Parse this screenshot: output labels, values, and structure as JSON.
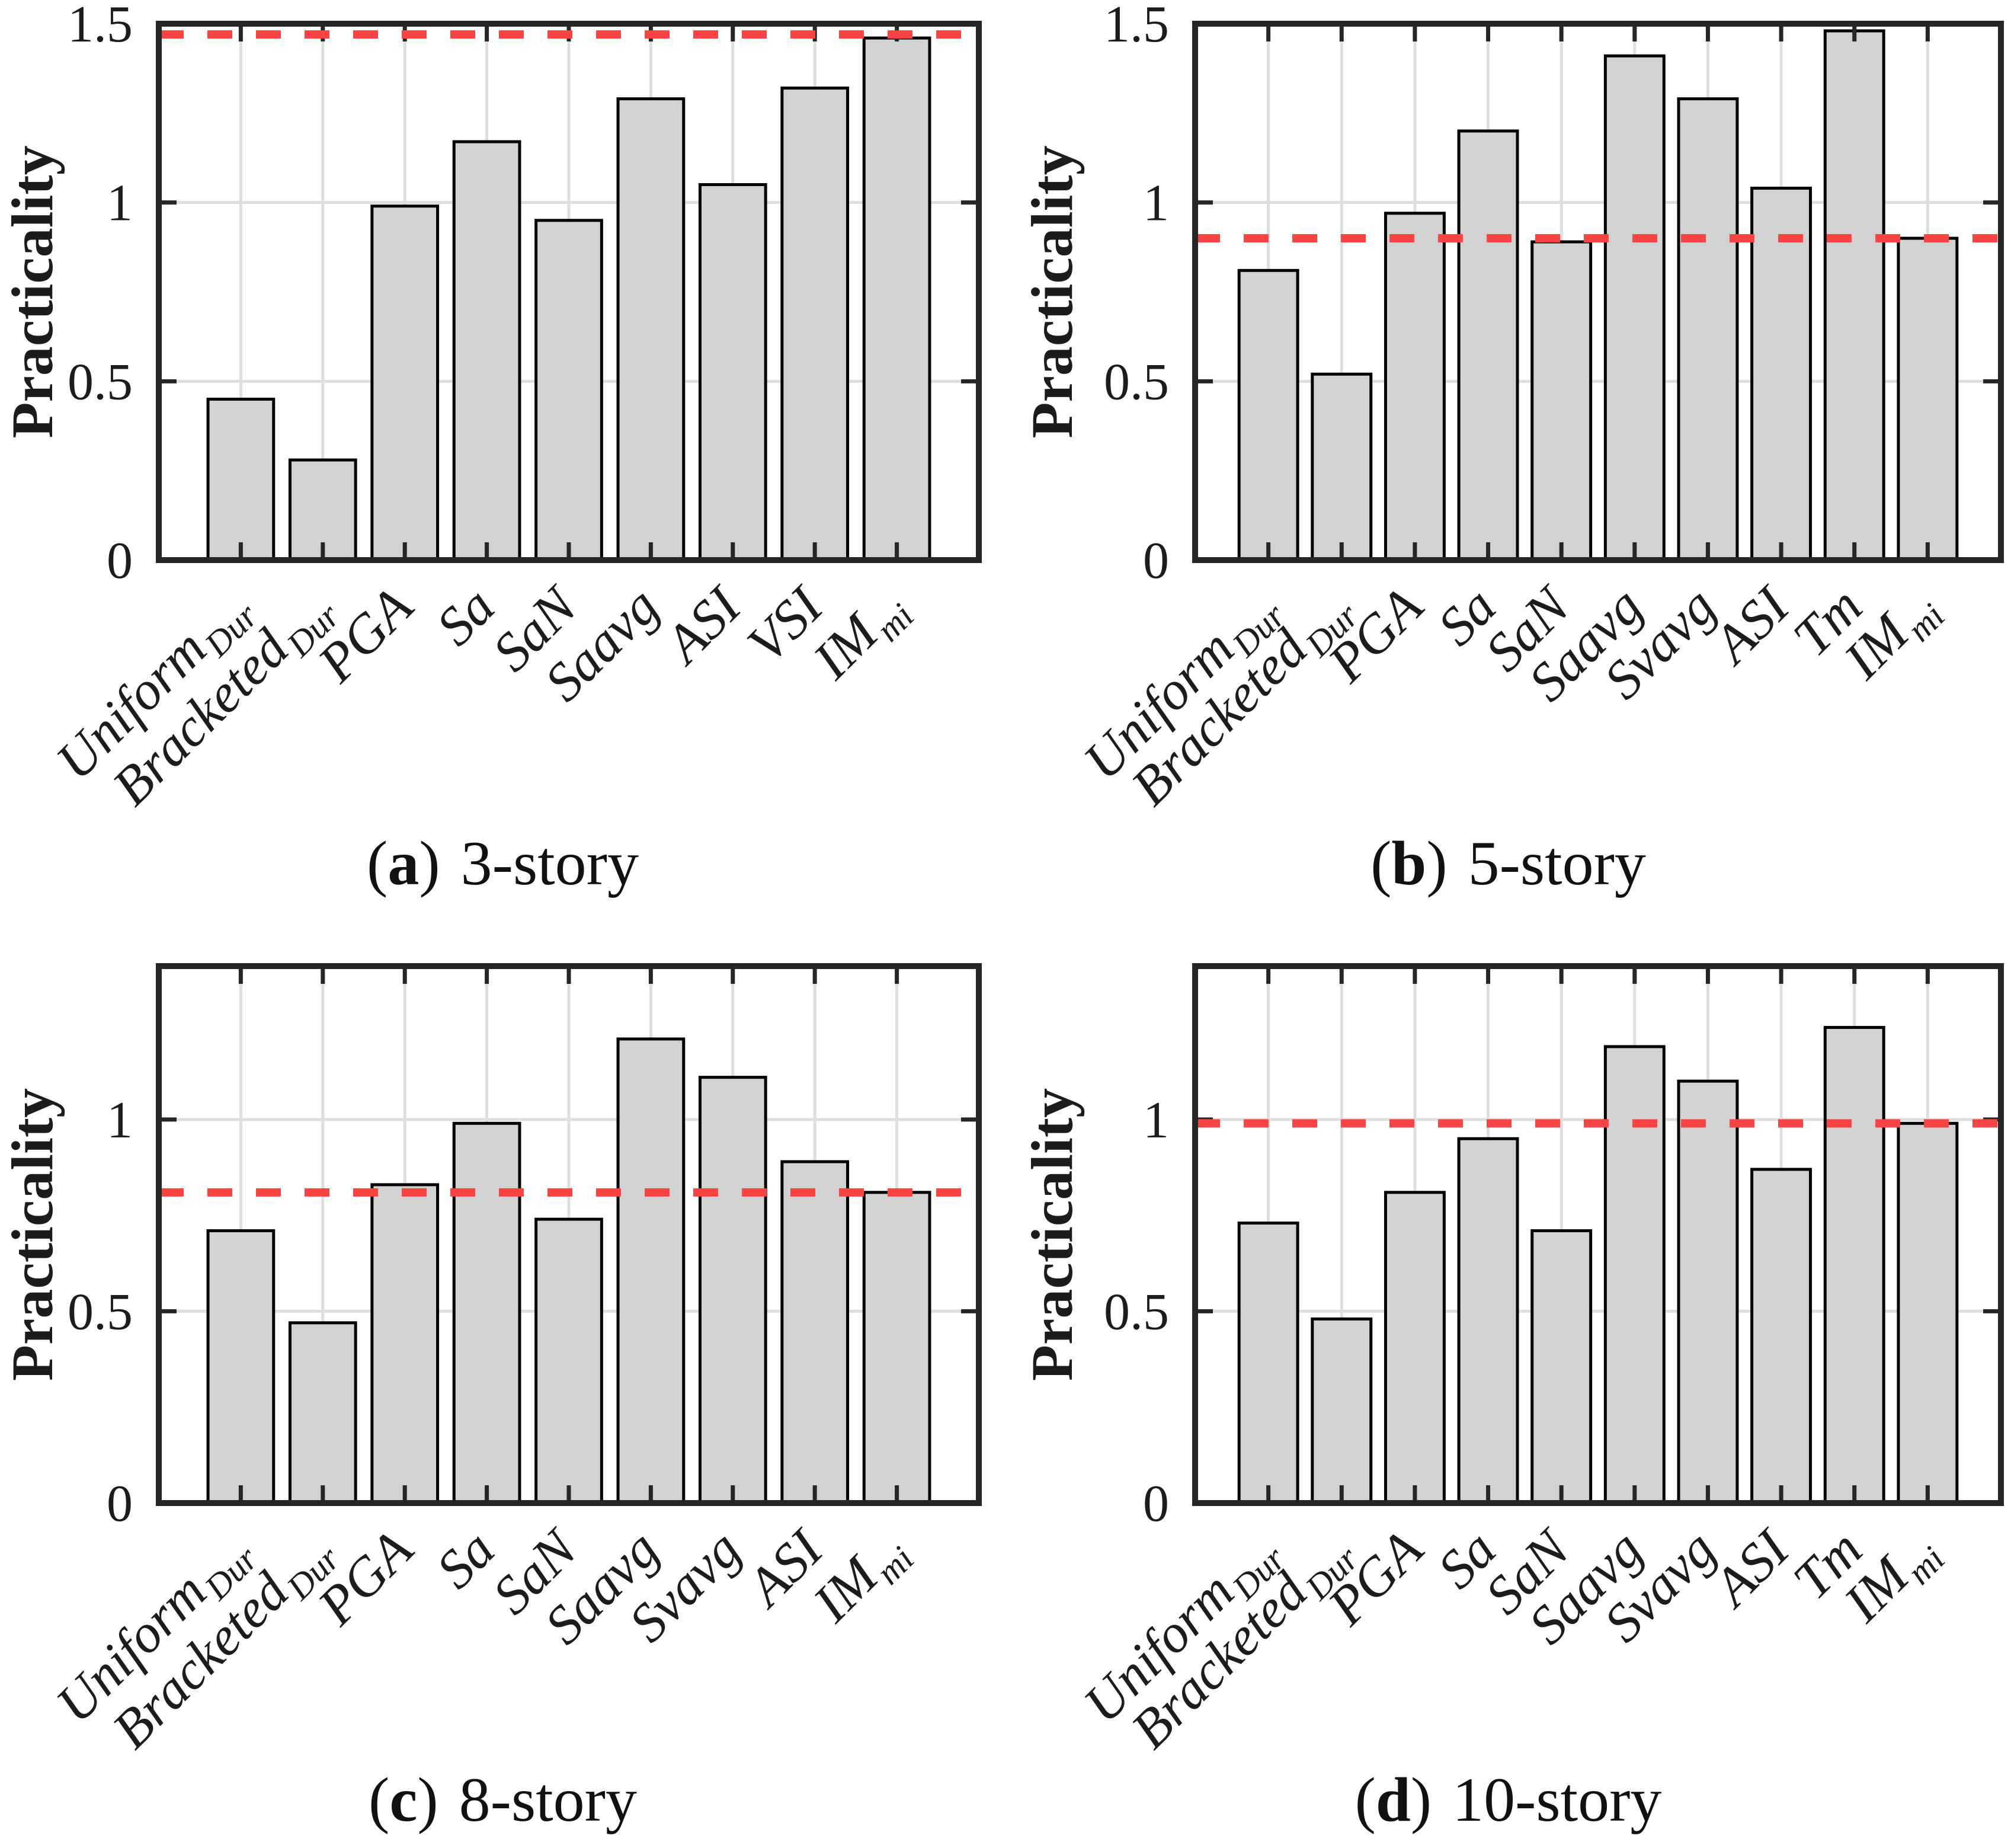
{
  "figure": {
    "captions": [
      {
        "open": "(",
        "letter": "a",
        "close": ")",
        "label": "3-story"
      },
      {
        "open": "(",
        "letter": "b",
        "close": ")",
        "label": "5-story"
      },
      {
        "open": "(",
        "letter": "c",
        "close": ")",
        "label": "8-story"
      },
      {
        "open": "(",
        "letter": "d",
        "close": ")",
        "label": "10-story"
      }
    ],
    "colors": {
      "bar_fill": "#d2d2d2",
      "bar_edge": "#000000",
      "grid": "#dedede",
      "frame": "#262626",
      "dashed_line": "#f94444",
      "text": "#1c1c1c"
    }
  },
  "chart_data": [
    {
      "type": "bar",
      "panel": "a",
      "title": "(a) 3-story",
      "ylabel": "Practicality",
      "categories": [
        {
          "main": "Uniform",
          "sub": "Dur"
        },
        {
          "main": "Bracketed",
          "sub": "Dur"
        },
        {
          "main": "PGA",
          "sub": ""
        },
        {
          "main": "Sa",
          "sub": ""
        },
        {
          "main": "SaN",
          "sub": ""
        },
        {
          "main": "Saavg",
          "sub": ""
        },
        {
          "main": "ASI",
          "sub": ""
        },
        {
          "main": "VSI",
          "sub": ""
        },
        {
          "main": "IM",
          "sub": "mi"
        }
      ],
      "values": [
        0.45,
        0.28,
        0.99,
        1.17,
        0.95,
        1.29,
        1.05,
        1.32,
        1.46
      ],
      "reference_line": 1.47,
      "ylim": [
        0,
        1.5
      ],
      "yticks": [
        0,
        0.5,
        1,
        1.5
      ],
      "yticklabels": [
        "0",
        "0.5",
        "1",
        "1.5"
      ],
      "grid": true,
      "legend": "none",
      "bar_color": "#d2d2d2"
    },
    {
      "type": "bar",
      "panel": "b",
      "title": "(b) 5-story",
      "ylabel": "Practicality",
      "categories": [
        {
          "main": "Uniform",
          "sub": "Dur"
        },
        {
          "main": "Bracketed",
          "sub": "Dur"
        },
        {
          "main": "PGA",
          "sub": ""
        },
        {
          "main": "Sa",
          "sub": ""
        },
        {
          "main": "SaN",
          "sub": ""
        },
        {
          "main": "Saavg",
          "sub": ""
        },
        {
          "main": "Svavg",
          "sub": ""
        },
        {
          "main": "ASI",
          "sub": ""
        },
        {
          "main": "Tm",
          "sub": ""
        },
        {
          "main": "IM",
          "sub": "mi"
        }
      ],
      "values": [
        0.81,
        0.52,
        0.97,
        1.2,
        0.89,
        1.41,
        1.29,
        1.04,
        1.48,
        0.9
      ],
      "reference_line": 0.9,
      "ylim": [
        0,
        1.5
      ],
      "yticks": [
        0,
        0.5,
        1,
        1.5
      ],
      "yticklabels": [
        "0",
        "0.5",
        "1",
        "1.5"
      ],
      "grid": true,
      "legend": "none",
      "bar_color": "#d2d2d2"
    },
    {
      "type": "bar",
      "panel": "c",
      "title": "(c) 8-story",
      "ylabel": "Practicality",
      "categories": [
        {
          "main": "Uniform",
          "sub": "Dur"
        },
        {
          "main": "Bracketed",
          "sub": "Dur"
        },
        {
          "main": "PGA",
          "sub": ""
        },
        {
          "main": "Sa",
          "sub": ""
        },
        {
          "main": "SaN",
          "sub": ""
        },
        {
          "main": "Saavg",
          "sub": ""
        },
        {
          "main": "Svavg",
          "sub": ""
        },
        {
          "main": "ASI",
          "sub": ""
        },
        {
          "main": "IM",
          "sub": "mi"
        }
      ],
      "values": [
        0.71,
        0.47,
        0.83,
        0.99,
        0.74,
        1.21,
        1.11,
        0.89,
        0.81
      ],
      "reference_line": 0.81,
      "ylim": [
        0,
        1.4
      ],
      "yticks": [
        0,
        0.5,
        1
      ],
      "yticklabels": [
        "0",
        "0.5",
        "1"
      ],
      "grid": true,
      "legend": "none",
      "bar_color": "#d2d2d2"
    },
    {
      "type": "bar",
      "panel": "d",
      "title": "(d) 10-story",
      "ylabel": "Practicality",
      "categories": [
        {
          "main": "Uniform",
          "sub": "Dur"
        },
        {
          "main": "Bracketed",
          "sub": "Dur"
        },
        {
          "main": "PGA",
          "sub": ""
        },
        {
          "main": "Sa",
          "sub": ""
        },
        {
          "main": "SaN",
          "sub": ""
        },
        {
          "main": "Saavg",
          "sub": ""
        },
        {
          "main": "Svavg",
          "sub": ""
        },
        {
          "main": "ASI",
          "sub": ""
        },
        {
          "main": "Tm",
          "sub": ""
        },
        {
          "main": "IM",
          "sub": "mi"
        }
      ],
      "values": [
        0.73,
        0.48,
        0.81,
        0.95,
        0.71,
        1.19,
        1.1,
        0.87,
        1.24,
        0.99
      ],
      "reference_line": 0.99,
      "ylim": [
        0,
        1.4
      ],
      "yticks": [
        0,
        0.5,
        1
      ],
      "yticklabels": [
        "0",
        "0.5",
        "1"
      ],
      "grid": true,
      "legend": "none",
      "bar_color": "#d2d2d2"
    }
  ]
}
